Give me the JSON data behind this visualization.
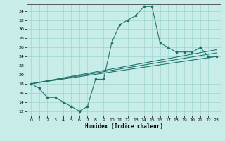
{
  "xlabel": "Humidex (Indice chaleur)",
  "bg_color": "#c8ede8",
  "grid_color": "#9dd5ce",
  "line_color": "#1a6e68",
  "xlim": [
    -0.5,
    23.5
  ],
  "ylim": [
    11.0,
    35.5
  ],
  "xticks": [
    0,
    1,
    2,
    3,
    4,
    5,
    6,
    7,
    8,
    9,
    10,
    11,
    12,
    13,
    14,
    15,
    16,
    17,
    18,
    19,
    20,
    21,
    22,
    23
  ],
  "yticks": [
    12,
    14,
    16,
    18,
    20,
    22,
    24,
    26,
    28,
    30,
    32,
    34
  ],
  "curve_x": [
    0,
    1,
    2,
    3,
    4,
    5,
    6,
    7,
    8,
    9,
    10,
    11,
    12,
    13,
    14,
    15,
    16,
    17,
    18,
    19,
    20,
    21,
    22,
    23
  ],
  "curve_y": [
    18,
    17,
    15,
    15,
    14,
    13,
    12,
    13,
    19,
    19,
    27,
    31,
    32,
    33,
    35,
    35,
    27,
    26,
    25,
    25,
    25,
    26,
    24,
    24
  ],
  "linear1": [
    [
      0,
      18
    ],
    [
      23,
      24.0
    ]
  ],
  "linear2": [
    [
      0,
      18
    ],
    [
      23,
      24.8
    ]
  ],
  "linear3": [
    [
      0,
      18
    ],
    [
      23,
      25.5
    ]
  ]
}
